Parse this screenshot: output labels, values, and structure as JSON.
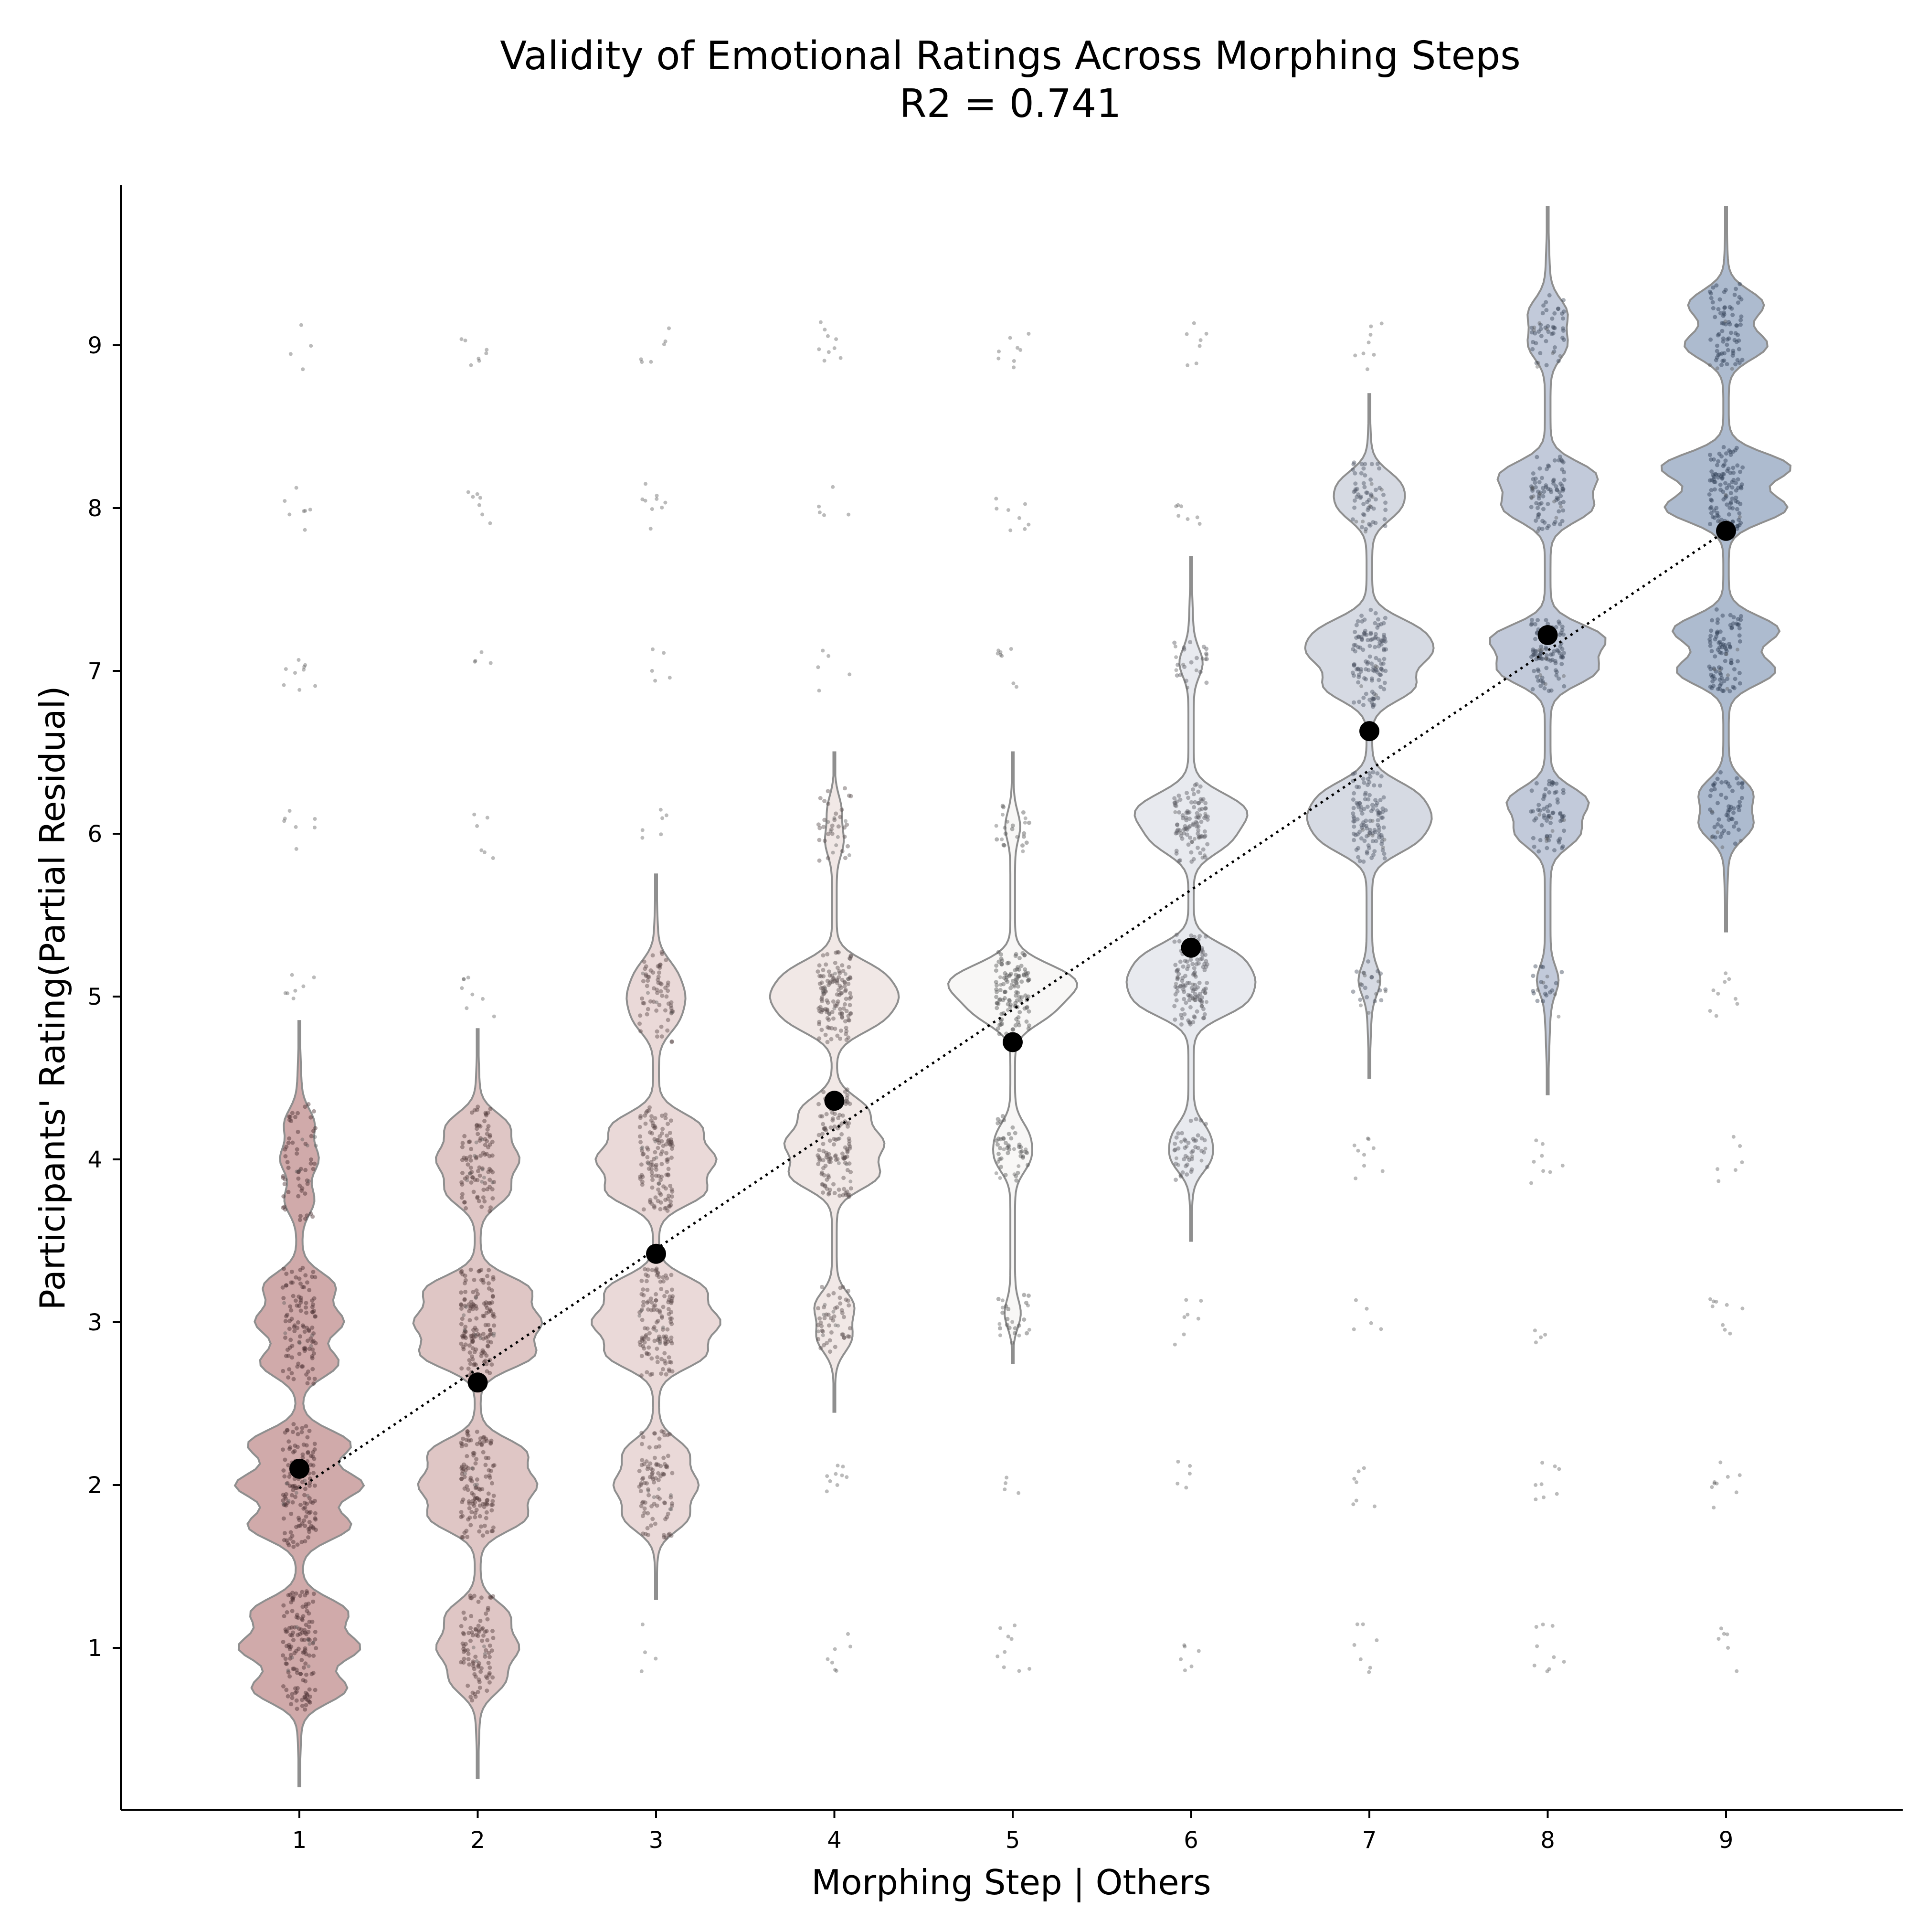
{
  "chart_data": {
    "type": "violin",
    "title": "Validity of Emotional Ratings Across Morphing Steps",
    "subtitle": "R2 = 0.741",
    "xlabel": "Morphing Step | Others",
    "ylabel": "Participants' Rating(Partial Residual)",
    "categories": [
      "1",
      "2",
      "3",
      "4",
      "5",
      "6",
      "7",
      "8",
      "9"
    ],
    "y_ticks": [
      "1",
      "2",
      "3",
      "4",
      "5",
      "6",
      "7",
      "8",
      "9"
    ],
    "ylim": [
      0.0,
      10.0
    ],
    "grid": false,
    "colors": [
      "#c89b9b",
      "#d9bcbb",
      "#e6d2d1",
      "#efe4e2",
      "#f7f6f4",
      "#e4e6ec",
      "#cfd4de",
      "#b7c1d3",
      "#9fafc7"
    ],
    "mean_points": [
      2.1,
      2.63,
      3.42,
      4.36,
      4.72,
      5.3,
      6.63,
      7.22,
      7.86
    ],
    "trend_line": {
      "start": [
        1,
        1.98
      ],
      "end": [
        9,
        7.86
      ],
      "style": "dotted"
    },
    "violins": [
      {
        "step": 1,
        "range": [
          0.15,
          4.85
        ],
        "clusters": [
          [
            0.75,
            0.55
          ],
          [
            1.0,
            0.7
          ],
          [
            1.22,
            0.55
          ],
          [
            1.75,
            0.6
          ],
          [
            2.0,
            0.75
          ],
          [
            2.25,
            0.6
          ],
          [
            2.75,
            0.45
          ],
          [
            3.0,
            0.5
          ],
          [
            3.22,
            0.4
          ],
          [
            3.75,
            0.15
          ],
          [
            4.0,
            0.2
          ],
          [
            4.22,
            0.15
          ]
        ]
      },
      {
        "step": 2,
        "range": [
          0.2,
          4.8
        ],
        "clusters": [
          [
            0.8,
            0.3
          ],
          [
            1.0,
            0.45
          ],
          [
            1.2,
            0.35
          ],
          [
            1.8,
            0.55
          ],
          [
            2.0,
            0.65
          ],
          [
            2.2,
            0.55
          ],
          [
            2.8,
            0.65
          ],
          [
            3.0,
            0.7
          ],
          [
            3.2,
            0.6
          ],
          [
            3.8,
            0.35
          ],
          [
            4.0,
            0.45
          ],
          [
            4.2,
            0.35
          ]
        ]
      },
      {
        "step": 3,
        "range": [
          1.3,
          5.75
        ],
        "clusters": [
          [
            1.8,
            0.35
          ],
          [
            2.0,
            0.45
          ],
          [
            2.2,
            0.35
          ],
          [
            2.8,
            0.55
          ],
          [
            3.0,
            0.7
          ],
          [
            3.2,
            0.55
          ],
          [
            3.8,
            0.55
          ],
          [
            4.0,
            0.65
          ],
          [
            4.2,
            0.5
          ],
          [
            4.85,
            0.2
          ],
          [
            5.0,
            0.25
          ],
          [
            5.15,
            0.18
          ]
        ]
      },
      {
        "step": 4,
        "range": [
          2.45,
          6.5
        ],
        "clusters": [
          [
            2.9,
            0.22
          ],
          [
            3.1,
            0.25
          ],
          [
            3.9,
            0.6
          ],
          [
            4.1,
            0.65
          ],
          [
            4.3,
            0.45
          ],
          [
            4.85,
            0.55
          ],
          [
            5.0,
            0.7
          ],
          [
            5.15,
            0.55
          ],
          [
            5.95,
            0.1
          ],
          [
            6.15,
            0.08
          ]
        ]
      },
      {
        "step": 5,
        "range": [
          2.75,
          6.5
        ],
        "clusters": [
          [
            3.05,
            0.1
          ],
          [
            4.0,
            0.2
          ],
          [
            4.15,
            0.18
          ],
          [
            4.9,
            0.45
          ],
          [
            5.05,
            0.6
          ],
          [
            5.15,
            0.45
          ],
          [
            6.05,
            0.08
          ]
        ]
      },
      {
        "step": 6,
        "range": [
          3.5,
          7.7
        ],
        "clusters": [
          [
            4.0,
            0.2
          ],
          [
            4.15,
            0.18
          ],
          [
            4.95,
            0.55
          ],
          [
            5.1,
            0.6
          ],
          [
            5.25,
            0.5
          ],
          [
            5.95,
            0.4
          ],
          [
            6.1,
            0.45
          ],
          [
            6.2,
            0.35
          ],
          [
            7.05,
            0.12
          ]
        ]
      },
      {
        "step": 7,
        "range": [
          4.5,
          8.7
        ],
        "clusters": [
          [
            5.1,
            0.1
          ],
          [
            5.95,
            0.45
          ],
          [
            6.1,
            0.55
          ],
          [
            6.25,
            0.45
          ],
          [
            6.9,
            0.5
          ],
          [
            7.1,
            0.6
          ],
          [
            7.25,
            0.5
          ],
          [
            8.0,
            0.3
          ],
          [
            8.15,
            0.3
          ]
        ]
      },
      {
        "step": 8,
        "range": [
          4.4,
          9.85
        ],
        "clusters": [
          [
            5.1,
            0.1
          ],
          [
            6.0,
            0.35
          ],
          [
            6.2,
            0.45
          ],
          [
            7.0,
            0.55
          ],
          [
            7.2,
            0.65
          ],
          [
            8.0,
            0.5
          ],
          [
            8.2,
            0.55
          ],
          [
            9.0,
            0.2
          ],
          [
            9.2,
            0.2
          ]
        ]
      },
      {
        "step": 9,
        "range": [
          5.4,
          9.85
        ],
        "clusters": [
          [
            6.05,
            0.3
          ],
          [
            6.25,
            0.3
          ],
          [
            7.0,
            0.6
          ],
          [
            7.25,
            0.65
          ],
          [
            8.0,
            0.75
          ],
          [
            8.25,
            0.8
          ],
          [
            9.0,
            0.5
          ],
          [
            9.25,
            0.45
          ]
        ]
      }
    ]
  }
}
